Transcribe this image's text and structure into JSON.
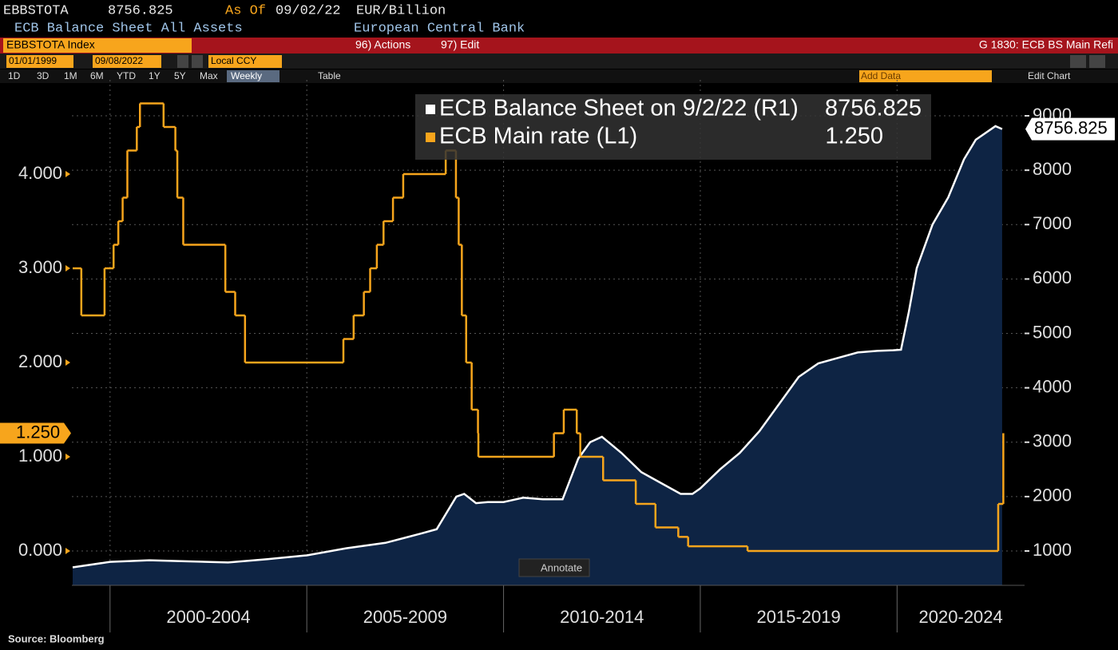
{
  "header": {
    "ticker": "EBBSTOTA",
    "as_of": "As Of",
    "date": "09/02/22",
    "units": "EUR/Billion",
    "description": "ECB Balance Sheet All Assets",
    "source": "European Central Bank"
  },
  "toolbar": {
    "security": "EBBSTOTA Index",
    "actions": "96) Actions",
    "edit": "97) Edit",
    "chart_id": "G 1830: ECB BS Main Refi",
    "start_date": "01/01/1999",
    "end_date": "09/08/2022",
    "currency": "Local CCY",
    "periods": [
      "1D",
      "3D",
      "1M",
      "6M",
      "YTD",
      "1Y",
      "5Y",
      "Max"
    ],
    "frequency": "Weekly",
    "table": "Table",
    "add_data": "Add Data",
    "edit_chart": "Edit Chart"
  },
  "annotate": "Annotate",
  "footer": "Source: Bloomberg",
  "chart_data": {
    "type": "line",
    "xlim": [
      1999.03,
      2023.24
    ],
    "xticks": [
      {
        "value": 2000,
        "label": "2000-2004"
      },
      {
        "value": 2005,
        "label": "2005-2009"
      },
      {
        "value": 2010,
        "label": "2010-2014"
      },
      {
        "value": 2015,
        "label": "2015-2019"
      },
      {
        "value": 2020,
        "label": "2020-2024"
      }
    ],
    "ylim": [
      -0.364,
      5.0
    ],
    "yticks": [
      {
        "value": 0,
        "label": "0.000"
      },
      {
        "value": 1,
        "label": "1.000"
      },
      {
        "value": 2,
        "label": "2.000"
      },
      {
        "value": 3,
        "label": "3.000"
      },
      {
        "value": 4,
        "label": "4.000"
      }
    ],
    "y2lim": [
      369,
      9661
    ],
    "y2ticks": [
      1000,
      2000,
      3000,
      4000,
      5000,
      6000,
      7000,
      8000,
      9000
    ],
    "grid": "y2",
    "series": [
      {
        "name": "ECB Balance Sheet on 9/2/22 (R1)",
        "axis": "y2",
        "style": "area",
        "color": "#ffffff",
        "fill": "#0e2444",
        "x": [
          1999.05,
          2000.0,
          2001.0,
          2002.0,
          2003.0,
          2004.0,
          2005.0,
          2006.0,
          2007.0,
          2007.9,
          2008.3,
          2008.8,
          2009.0,
          2009.3,
          2009.6,
          2010.0,
          2010.5,
          2011.0,
          2011.5,
          2011.9,
          2012.2,
          2012.5,
          2013.0,
          2013.5,
          2014.0,
          2014.5,
          2014.8,
          2015.0,
          2015.5,
          2016.0,
          2016.5,
          2017.0,
          2017.5,
          2018.0,
          2018.5,
          2019.0,
          2019.5,
          2019.9,
          2020.1,
          2020.3,
          2020.5,
          2020.9,
          2021.3,
          2021.7,
          2022.0,
          2022.5,
          2022.67
        ],
        "values": [
          700,
          800,
          830,
          810,
          790,
          850,
          920,
          1050,
          1150,
          1320,
          1400,
          2000,
          2050,
          1880,
          1900,
          1900,
          1980,
          1950,
          1950,
          2700,
          3000,
          3100,
          2800,
          2450,
          2250,
          2050,
          2050,
          2150,
          2500,
          2800,
          3200,
          3700,
          4200,
          4450,
          4550,
          4650,
          4680,
          4690,
          4700,
          5400,
          6200,
          7000,
          7500,
          8200,
          8560,
          8810,
          8756.825
        ]
      },
      {
        "name": "ECB Main rate (L1)",
        "axis": "y",
        "style": "step",
        "color": "#f7a51c",
        "x": [
          1999.05,
          1999.27,
          1999.86,
          2000.09,
          2000.21,
          2000.32,
          2000.44,
          2000.68,
          2000.76,
          2001.36,
          2001.66,
          2001.71,
          2001.86,
          2002.93,
          2003.18,
          2003.43,
          2005.93,
          2006.19,
          2006.45,
          2006.61,
          2006.78,
          2006.95,
          2007.19,
          2007.45,
          2008.53,
          2008.79,
          2008.86,
          2008.94,
          2009.05,
          2009.19,
          2009.35,
          2009.36,
          2011.28,
          2011.53,
          2011.86,
          2011.95,
          2012.53,
          2013.36,
          2013.86,
          2014.44,
          2014.69,
          2016.2,
          2022.57,
          2022.7
        ],
        "values": [
          3,
          2.5,
          3,
          3.25,
          3.5,
          3.75,
          4.25,
          4.5,
          4.75,
          4.5,
          4.25,
          3.75,
          3.25,
          2.75,
          2.5,
          2,
          2.25,
          2.5,
          2.75,
          3,
          3.25,
          3.5,
          3.75,
          4,
          4.25,
          3.75,
          3.25,
          2.5,
          2,
          1.5,
          1.25,
          1,
          1.25,
          1.5,
          1.25,
          1,
          0.75,
          0.5,
          0.25,
          0.15,
          0.05,
          0,
          0.5,
          1.25
        ],
        "value_labels": [
          null,
          null,
          null,
          null,
          null,
          null,
          null,
          null,
          null,
          null,
          null,
          null,
          null,
          null,
          null,
          null,
          null,
          null,
          null,
          null,
          null,
          null,
          null,
          null,
          null,
          null,
          null,
          null,
          null,
          null,
          null,
          null,
          null,
          null,
          null,
          null,
          null,
          null,
          null,
          null,
          null,
          null,
          null,
          "1.250"
        ]
      }
    ]
  }
}
